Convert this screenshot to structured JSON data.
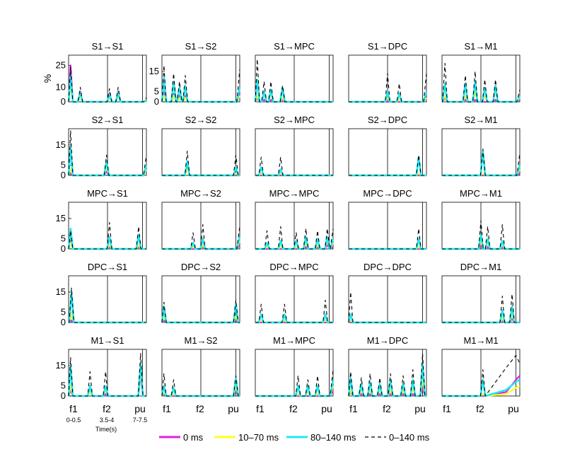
{
  "figure": {
    "ylabel": "%",
    "xlabel": "Time(s)",
    "xticks": [
      "f1",
      "f2",
      "pu"
    ],
    "xtick_sublabels": [
      "0-0.5",
      "3.5-4",
      "7-7.5"
    ],
    "legend": [
      {
        "label": "0 ms",
        "color": "#e020e0",
        "style": "solid"
      },
      {
        "label": "10–70 ms",
        "color": "#ffff20",
        "style": "solid"
      },
      {
        "label": "80–140 ms",
        "color": "#20e8f0",
        "style": "solid"
      },
      {
        "label": "0–140 ms",
        "color": "#000000",
        "style": "dashed"
      }
    ]
  },
  "chart_data": [
    {
      "type": "line",
      "title": "S1→S1",
      "ylim": [
        0,
        32
      ],
      "yticks": [
        0,
        10,
        25
      ],
      "peaks": [
        {
          "x": 0.1,
          "v": [
            25,
            12,
            18,
            24
          ]
        },
        {
          "x": 0.6,
          "v": [
            7,
            3,
            6,
            10
          ]
        },
        {
          "x": 2.1,
          "v": [
            6,
            3,
            5,
            9
          ]
        },
        {
          "x": 2.55,
          "v": [
            7,
            4,
            6,
            10
          ]
        }
      ],
      "last": [
        1,
        0,
        1,
        3
      ]
    },
    {
      "type": "line",
      "title": "S1→S2",
      "ylim": [
        0,
        23
      ],
      "yticks": [
        0,
        5,
        15
      ],
      "peaks": [
        {
          "x": 0.1,
          "v": [
            5,
            3,
            12,
            18
          ]
        },
        {
          "x": 0.6,
          "v": [
            4,
            3,
            10,
            14
          ]
        },
        {
          "x": 0.9,
          "v": [
            3,
            2,
            7,
            10
          ]
        },
        {
          "x": 1.2,
          "v": [
            3,
            2,
            8,
            13
          ]
        }
      ],
      "last": [
        4,
        3,
        7,
        16
      ]
    },
    {
      "type": "line",
      "title": "S1→MPC",
      "ylim": [
        0,
        23
      ],
      "yticks": [],
      "peaks": [
        {
          "x": 0.1,
          "v": [
            2,
            3,
            11,
            21
          ]
        },
        {
          "x": 0.45,
          "v": [
            1,
            5,
            5,
            10
          ]
        },
        {
          "x": 0.8,
          "v": [
            1,
            4,
            6,
            10
          ]
        },
        {
          "x": 1.4,
          "v": [
            1,
            2,
            7,
            8
          ]
        }
      ],
      "last": [
        0,
        0,
        0,
        0
      ]
    },
    {
      "type": "line",
      "title": "S1→DPC",
      "ylim": [
        0,
        23
      ],
      "yticks": [],
      "peaks": [
        {
          "x": 2.0,
          "v": [
            0,
            2,
            5,
            14
          ]
        },
        {
          "x": 2.6,
          "v": [
            0,
            1,
            4,
            9
          ]
        }
      ],
      "last": [
        4,
        2,
        5,
        14
      ]
    },
    {
      "type": "line",
      "title": "S1→M1",
      "ylim": [
        0,
        23
      ],
      "yticks": [],
      "peaks": [
        {
          "x": 0.15,
          "v": [
            2,
            3,
            9,
            19
          ]
        },
        {
          "x": 1.2,
          "v": [
            1,
            3,
            9,
            13
          ]
        },
        {
          "x": 1.7,
          "v": [
            1,
            5,
            10,
            15
          ]
        },
        {
          "x": 2.2,
          "v": [
            0,
            3,
            7,
            11
          ]
        },
        {
          "x": 2.75,
          "v": [
            1,
            6,
            8,
            11
          ]
        }
      ],
      "last": [
        1,
        2,
        3,
        6
      ]
    },
    {
      "type": "line",
      "title": "S2→S1",
      "ylim": [
        0,
        23
      ],
      "yticks": [
        0,
        5,
        15
      ],
      "peaks": [
        {
          "x": 0.1,
          "v": [
            1,
            3,
            14,
            22
          ]
        },
        {
          "x": 1.95,
          "v": [
            2,
            4,
            7,
            10
          ]
        }
      ],
      "last": [
        3,
        3,
        5,
        10
      ]
    },
    {
      "type": "line",
      "title": "S2→S2",
      "ylim": [
        0,
        23
      ],
      "yticks": [],
      "peaks": [
        {
          "x": 1.3,
          "v": [
            5,
            3,
            7,
            12
          ]
        },
        {
          "x": 3.8,
          "v": [
            0,
            1,
            4,
            10
          ]
        }
      ],
      "last": [
        0,
        0,
        0,
        0
      ]
    },
    {
      "type": "line",
      "title": "S2→MPC",
      "ylim": [
        0,
        23
      ],
      "yticks": [],
      "peaks": [
        {
          "x": 0.3,
          "v": [
            0,
            1,
            4,
            9
          ]
        },
        {
          "x": 1.3,
          "v": [
            0,
            1,
            3,
            9
          ]
        }
      ],
      "last": [
        0,
        0,
        0,
        0
      ]
    },
    {
      "type": "line",
      "title": "S2→DPC",
      "ylim": [
        0,
        23
      ],
      "yticks": [],
      "peaks": [
        {
          "x": 3.6,
          "v": [
            0,
            1,
            9,
            10
          ]
        }
      ],
      "last": [
        0,
        0,
        0,
        0
      ]
    },
    {
      "type": "line",
      "title": "S2→M1",
      "ylim": [
        0,
        23
      ],
      "yticks": [],
      "peaks": [
        {
          "x": 2.1,
          "v": [
            0,
            1,
            12,
            13
          ]
        }
      ],
      "last": [
        1,
        3,
        5,
        11
      ]
    },
    {
      "type": "line",
      "title": "MPC→S1",
      "ylim": [
        0,
        23
      ],
      "yticks": [
        0,
        5,
        15
      ],
      "peaks": [
        {
          "x": 0.1,
          "v": [
            4,
            3,
            10,
            9
          ]
        },
        {
          "x": 2.1,
          "v": [
            1,
            2,
            6,
            13
          ]
        },
        {
          "x": 3.6,
          "v": [
            1,
            2,
            7,
            11
          ]
        }
      ],
      "last": [
        0,
        0,
        0,
        0
      ]
    },
    {
      "type": "line",
      "title": "MPC→S2",
      "ylim": [
        0,
        23
      ],
      "yticks": [],
      "peaks": [
        {
          "x": 1.6,
          "v": [
            0,
            1,
            3,
            8
          ]
        },
        {
          "x": 2.1,
          "v": [
            1,
            2,
            5,
            12
          ]
        }
      ],
      "last": [
        2,
        4,
        6,
        11
      ]
    },
    {
      "type": "line",
      "title": "MPC→MPC",
      "ylim": [
        0,
        23
      ],
      "yticks": [],
      "peaks": [
        {
          "x": 0.6,
          "v": [
            0,
            1,
            3,
            9
          ]
        },
        {
          "x": 1.3,
          "v": [
            0,
            1,
            4,
            11
          ]
        },
        {
          "x": 2.1,
          "v": [
            0,
            1,
            4,
            8
          ]
        },
        {
          "x": 2.6,
          "v": [
            1,
            3,
            6,
            10
          ]
        },
        {
          "x": 3.2,
          "v": [
            1,
            2,
            5,
            9
          ]
        },
        {
          "x": 3.7,
          "v": [
            2,
            4,
            6,
            10
          ]
        }
      ],
      "last": [
        1,
        3,
        5,
        10
      ]
    },
    {
      "type": "line",
      "title": "MPC→DPC",
      "ylim": [
        0,
        23
      ],
      "yticks": [],
      "peaks": [
        {
          "x": 3.6,
          "v": [
            0,
            1,
            5,
            10
          ]
        }
      ],
      "last": [
        0,
        0,
        0,
        0
      ]
    },
    {
      "type": "line",
      "title": "MPC→M1",
      "ylim": [
        0,
        23
      ],
      "yticks": [],
      "peaks": [
        {
          "x": 2.0,
          "v": [
            2,
            4,
            7,
            14
          ]
        },
        {
          "x": 2.35,
          "v": [
            1,
            3,
            5,
            11
          ]
        },
        {
          "x": 3.1,
          "v": [
            1,
            2,
            4,
            12
          ]
        }
      ],
      "last": [
        0,
        0,
        0,
        0
      ]
    },
    {
      "type": "line",
      "title": "DPC→S1",
      "ylim": [
        0,
        23
      ],
      "yticks": [
        0,
        5,
        15
      ],
      "peaks": [
        {
          "x": 0.15,
          "v": [
            1,
            4,
            15,
            17
          ]
        }
      ],
      "last": [
        0,
        0,
        0,
        0
      ]
    },
    {
      "type": "line",
      "title": "DPC→S2",
      "ylim": [
        0,
        23
      ],
      "yticks": [],
      "peaks": [
        {
          "x": 0.1,
          "v": [
            1,
            3,
            8,
            10
          ]
        },
        {
          "x": 3.8,
          "v": [
            1,
            3,
            9,
            11
          ]
        }
      ],
      "last": [
        0,
        0,
        0,
        0
      ]
    },
    {
      "type": "line",
      "title": "DPC→MPC",
      "ylim": [
        0,
        23
      ],
      "yticks": [],
      "peaks": [
        {
          "x": 0.3,
          "v": [
            0,
            1,
            4,
            9
          ]
        },
        {
          "x": 1.5,
          "v": [
            0,
            1,
            4,
            9
          ]
        },
        {
          "x": 3.6,
          "v": [
            0,
            1,
            4,
            11
          ]
        }
      ],
      "last": [
        0,
        0,
        0,
        0
      ]
    },
    {
      "type": "line",
      "title": "DPC→DPC",
      "ylim": [
        0,
        23
      ],
      "yticks": [],
      "peaks": [
        {
          "x": 0.1,
          "v": [
            0,
            1,
            4,
            15
          ]
        }
      ],
      "last": [
        0,
        0,
        0,
        0
      ]
    },
    {
      "type": "line",
      "title": "DPC→M1",
      "ylim": [
        0,
        23
      ],
      "yticks": [],
      "peaks": [
        {
          "x": 3.1,
          "v": [
            1,
            2,
            6,
            13
          ]
        },
        {
          "x": 3.6,
          "v": [
            2,
            4,
            8,
            14
          ]
        }
      ],
      "last": [
        0,
        0,
        0,
        0
      ]
    },
    {
      "type": "line",
      "title": "M1→S1",
      "ylim": [
        0,
        23
      ],
      "yticks": [
        0,
        5,
        15
      ],
      "peaks": [
        {
          "x": 0.1,
          "v": [
            3,
            5,
            15,
            19
          ]
        },
        {
          "x": 1.1,
          "v": [
            3,
            2,
            5,
            12
          ]
        },
        {
          "x": 1.9,
          "v": [
            1,
            3,
            5,
            12
          ]
        },
        {
          "x": 3.7,
          "v": [
            10,
            12,
            16,
            21
          ]
        }
      ],
      "last": [
        0,
        0,
        0,
        0
      ]
    },
    {
      "type": "line",
      "title": "M1→S2",
      "ylim": [
        0,
        23
      ],
      "yticks": [],
      "peaks": [
        {
          "x": 0.1,
          "v": [
            1,
            2,
            5,
            11
          ]
        },
        {
          "x": 0.6,
          "v": [
            0,
            1,
            4,
            8
          ]
        },
        {
          "x": 3.8,
          "v": [
            3,
            5,
            9,
            10
          ]
        }
      ],
      "last": [
        0,
        0,
        0,
        0
      ]
    },
    {
      "type": "line",
      "title": "M1→MPC",
      "ylim": [
        0,
        23
      ],
      "yticks": [],
      "peaks": [
        {
          "x": 2.2,
          "v": [
            0,
            1,
            5,
            10
          ]
        },
        {
          "x": 2.7,
          "v": [
            0,
            2,
            5,
            8
          ]
        },
        {
          "x": 3.2,
          "v": [
            0,
            1,
            5,
            10
          ]
        }
      ],
      "last": [
        3,
        5,
        8,
        13
      ]
    },
    {
      "type": "line",
      "title": "M1→DPC",
      "ylim": [
        0,
        23
      ],
      "yticks": [],
      "peaks": [
        {
          "x": 0.1,
          "v": [
            2,
            3,
            9,
            12
          ]
        },
        {
          "x": 0.65,
          "v": [
            1,
            3,
            6,
            9
          ]
        },
        {
          "x": 1.1,
          "v": [
            1,
            3,
            7,
            11
          ]
        },
        {
          "x": 1.6,
          "v": [
            1,
            3,
            6,
            9
          ]
        },
        {
          "x": 2.15,
          "v": [
            1,
            3,
            8,
            11
          ]
        },
        {
          "x": 2.8,
          "v": [
            1,
            3,
            6,
            10
          ]
        },
        {
          "x": 3.3,
          "v": [
            1,
            4,
            8,
            13
          ]
        },
        {
          "x": 3.8,
          "v": [
            4,
            8,
            16,
            21
          ]
        }
      ],
      "last": [
        0,
        0,
        0,
        0
      ]
    },
    {
      "type": "line",
      "title": "M1→M1",
      "ylim": [
        0,
        23
      ],
      "yticks": [],
      "peaks": [
        {
          "x": 2.1,
          "v": [
            0,
            1,
            8,
            13
          ]
        }
      ],
      "last": [
        10,
        5,
        8,
        16
      ],
      "rise": [
        {
          "x": 3.3,
          "v": [
            2,
            1,
            3,
            14
          ]
        },
        {
          "x": 3.8,
          "v": [
            8,
            4,
            7,
            20
          ]
        }
      ]
    }
  ]
}
